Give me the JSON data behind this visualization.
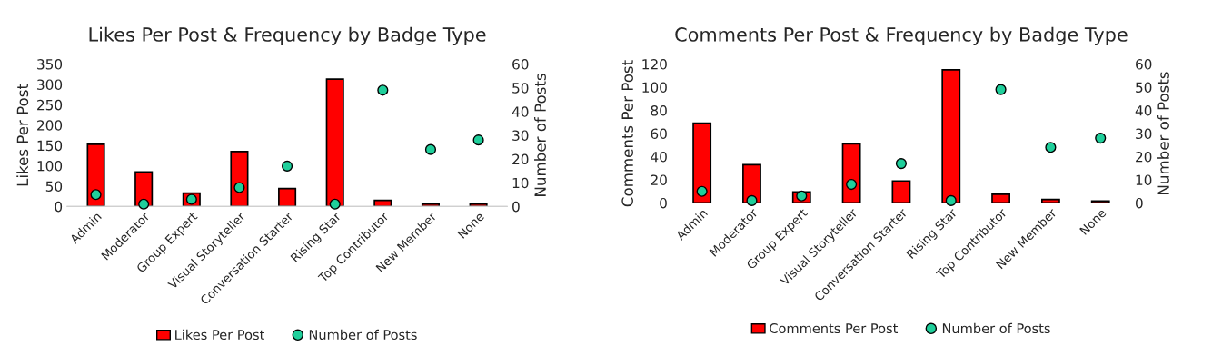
{
  "chart_data": [
    {
      "type": "bar",
      "title": "Likes Per Post & Frequency by Badge Type",
      "ylabel": "Likes Per Post",
      "y2label": "Number of Posts",
      "categories": [
        "Admin",
        "Moderator",
        "Group Expert",
        "Visual Storyteller",
        "Conversation Starter",
        "Rising Star",
        "Top Contributor",
        "New Member",
        "None"
      ],
      "series": [
        {
          "name": "Likes Per Post",
          "color": "#ff0000",
          "values": [
            153,
            85,
            33,
            135,
            44,
            313,
            15,
            6,
            6
          ]
        },
        {
          "name": "Number of Posts",
          "type": "scatter",
          "axis": "y2",
          "color": "#1fcf9b",
          "marker": "circle",
          "values": [
            5,
            1,
            3,
            8,
            17,
            1,
            49,
            24,
            28
          ]
        }
      ],
      "ylim": [
        0,
        350
      ],
      "yticks": [
        0,
        50,
        100,
        150,
        200,
        250,
        300,
        350
      ],
      "y2lim": [
        0,
        60
      ],
      "y2ticks": [
        0,
        10,
        20,
        30,
        40,
        50,
        60
      ],
      "grid": false,
      "legend": "bottom"
    },
    {
      "type": "bar",
      "title": "Comments Per Post & Frequency by Badge Type",
      "ylabel": "Comments Per Post",
      "y2label": "Number of Posts",
      "categories": [
        "Admin",
        "Moderator",
        "Group Expert",
        "Visual Storyteller",
        "Conversation Starter",
        "Rising Star",
        "Top Contributor",
        "New Member",
        "None"
      ],
      "series": [
        {
          "name": "Comments Per Post",
          "color": "#ff0000",
          "values": [
            69,
            33,
            9.5,
            51,
            19,
            115,
            7.5,
            3,
            1.6
          ]
        },
        {
          "name": "Number of Posts",
          "type": "scatter",
          "axis": "y2",
          "color": "#1fcf9b",
          "marker": "circle",
          "values": [
            5,
            1,
            3,
            8,
            17,
            1,
            49,
            24,
            28
          ]
        }
      ],
      "ylim": [
        0,
        120
      ],
      "yticks": [
        0,
        20,
        40,
        60,
        80,
        100,
        120
      ],
      "y2lim": [
        0,
        60
      ],
      "y2ticks": [
        0,
        10,
        20,
        30,
        40,
        50,
        60
      ],
      "grid": false,
      "legend": "bottom"
    }
  ]
}
